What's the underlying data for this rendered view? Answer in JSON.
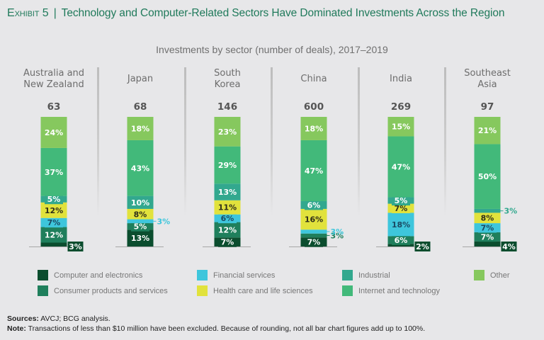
{
  "header": {
    "exhibit_label": "Exhibit 5",
    "separator": "|",
    "title": "Technology and Computer-Related Sectors Have Dominated Investments Across the Region"
  },
  "chart_data": {
    "type": "bar",
    "stacked": true,
    "title": "Investments by sector (number of deals), 2017–2019",
    "xlabel": "",
    "ylabel": "",
    "unit": "%",
    "ylim": [
      0,
      100
    ],
    "categories": [
      "Australia and New Zealand",
      "Japan",
      "South Korea",
      "China",
      "India",
      "Southeast Asia"
    ],
    "category_lines": [
      [
        "Australia and",
        "New Zealand"
      ],
      [
        "Japan"
      ],
      [
        "South",
        "Korea"
      ],
      [
        "China"
      ],
      [
        "India"
      ],
      [
        "Southeast",
        "Asia"
      ]
    ],
    "totals": [
      63,
      68,
      146,
      600,
      269,
      97
    ],
    "series": [
      {
        "name": "Computer and electronics",
        "color": "#0b4d2e",
        "label_color": "#ffffff",
        "values": [
          3,
          13,
          7,
          7,
          2,
          4
        ]
      },
      {
        "name": "Consumer products and services",
        "color": "#1f7f5c",
        "label_color": "#ffffff",
        "values": [
          12,
          5,
          12,
          3,
          6,
          7
        ]
      },
      {
        "name": "Financial services",
        "color": "#3ec6dc",
        "label_color": "#1b4a63",
        "values": [
          7,
          3,
          6,
          3,
          18,
          7
        ]
      },
      {
        "name": "Health care and life sciences",
        "color": "#e1e23c",
        "label_color": "#2e2e1a",
        "values": [
          12,
          8,
          11,
          16,
          7,
          8
        ]
      },
      {
        "name": "Industrial",
        "color": "#32a88e",
        "label_color": "#ffffff",
        "values": [
          5,
          10,
          13,
          6,
          5,
          3
        ]
      },
      {
        "name": "Internet and technology",
        "color": "#42b97a",
        "label_color": "#ffffff",
        "values": [
          37,
          43,
          29,
          47,
          47,
          50
        ]
      },
      {
        "name": "Other",
        "color": "#86c85e",
        "label_color": "#ffffff",
        "values": [
          24,
          18,
          23,
          18,
          15,
          21
        ]
      }
    ],
    "legend_position": "bottom",
    "grid": false
  },
  "footer": {
    "sources_label": "Sources:",
    "sources_text": "AVCJ; BCG analysis.",
    "note_label": "Note:",
    "note_text": "Transactions of less than $10 million have been excluded. Because of rounding, not all bar chart figures add up to 100%."
  }
}
